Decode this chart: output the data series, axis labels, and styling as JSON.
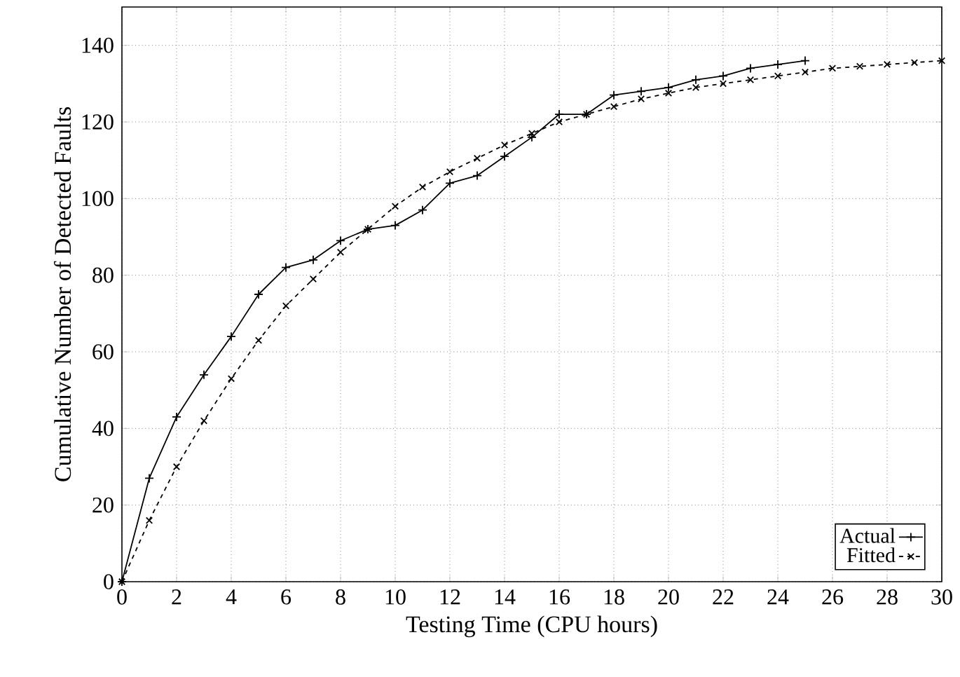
{
  "chart_data": {
    "type": "line",
    "xlabel": "Testing Time (CPU hours)",
    "ylabel": "Cumulative Number of Detected Faults",
    "xlim": [
      0,
      30
    ],
    "ylim": [
      0,
      150
    ],
    "xticks": [
      0,
      2,
      4,
      6,
      8,
      10,
      12,
      14,
      16,
      18,
      20,
      22,
      24,
      26,
      28,
      30
    ],
    "yticks": [
      0,
      20,
      40,
      60,
      80,
      100,
      120,
      140
    ],
    "grid": true,
    "legend": "bottom right",
    "series": [
      {
        "name": "Actual",
        "color": "#000000",
        "marker": "plus",
        "line_style": "solid",
        "x": [
          0,
          1,
          2,
          3,
          4,
          5,
          6,
          7,
          8,
          9,
          10,
          11,
          12,
          13,
          14,
          15,
          16,
          17,
          18,
          19,
          20,
          21,
          22,
          23,
          24,
          25
        ],
        "values": [
          0,
          27,
          43,
          54,
          64,
          75,
          82,
          84,
          89,
          92,
          93,
          97,
          104,
          106,
          111,
          116,
          122,
          122,
          127,
          128,
          129,
          131,
          132,
          134,
          135,
          136
        ]
      },
      {
        "name": "Fitted",
        "color": "#000000",
        "marker": "cross",
        "line_style": "dashed",
        "x": [
          0,
          1,
          2,
          3,
          4,
          5,
          6,
          7,
          8,
          9,
          10,
          11,
          12,
          13,
          14,
          15,
          16,
          17,
          18,
          19,
          20,
          21,
          22,
          23,
          24,
          25,
          26,
          27,
          28,
          29,
          30
        ],
        "values": [
          0,
          16,
          30,
          42,
          53,
          63,
          72,
          79,
          86,
          92,
          98,
          103,
          107,
          110.5,
          114,
          117,
          120,
          122,
          124,
          126,
          127.5,
          129,
          130,
          131,
          132,
          133,
          134,
          134.5,
          135,
          135.5,
          136
        ]
      }
    ]
  }
}
